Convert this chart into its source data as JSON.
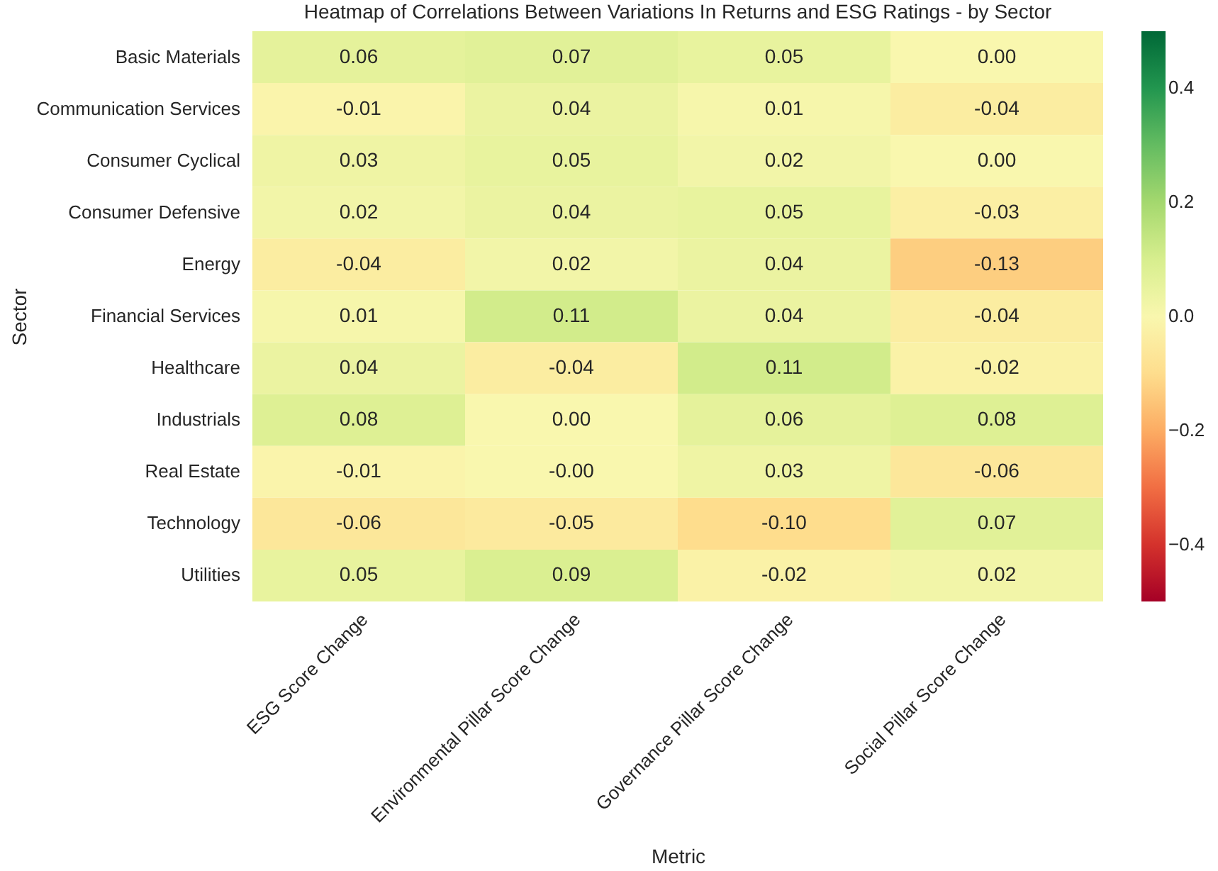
{
  "chart_data": {
    "type": "heatmap",
    "title": "Heatmap of Correlations Between Variations In Returns and ESG Ratings - by Sector",
    "xlabel": "Metric",
    "ylabel": "Sector",
    "categories": [
      "ESG Score Change",
      "Environmental Pillar Score Change",
      "Governance Pillar Score Change",
      "Social Pillar Score Change"
    ],
    "y_categories": [
      "Basic Materials",
      "Communication Services",
      "Consumer Cyclical",
      "Consumer Defensive",
      "Energy",
      "Financial Services",
      "Healthcare",
      "Industrials",
      "Real Estate",
      "Technology",
      "Utilities"
    ],
    "cells": [
      [
        0.06,
        0.07,
        0.05,
        0.0
      ],
      [
        -0.01,
        0.04,
        0.01,
        -0.04
      ],
      [
        0.03,
        0.05,
        0.02,
        0.0
      ],
      [
        0.02,
        0.04,
        0.05,
        -0.03
      ],
      [
        -0.04,
        0.02,
        0.04,
        -0.13
      ],
      [
        0.01,
        0.11,
        0.04,
        -0.04
      ],
      [
        0.04,
        -0.04,
        0.11,
        -0.02
      ],
      [
        0.08,
        0.0,
        0.06,
        0.08
      ],
      [
        -0.01,
        0.0,
        0.03,
        -0.06
      ],
      [
        -0.06,
        -0.05,
        -0.1,
        0.07
      ],
      [
        0.05,
        0.09,
        -0.02,
        0.02
      ]
    ],
    "cell_labels": [
      [
        "0.06",
        "0.07",
        "0.05",
        "0.00"
      ],
      [
        "-0.01",
        "0.04",
        "0.01",
        "-0.04"
      ],
      [
        "0.03",
        "0.05",
        "0.02",
        "0.00"
      ],
      [
        "0.02",
        "0.04",
        "0.05",
        "-0.03"
      ],
      [
        "-0.04",
        "0.02",
        "0.04",
        "-0.13"
      ],
      [
        "0.01",
        "0.11",
        "0.04",
        "-0.04"
      ],
      [
        "0.04",
        "-0.04",
        "0.11",
        "-0.02"
      ],
      [
        "0.08",
        "0.00",
        "0.06",
        "0.08"
      ],
      [
        "-0.01",
        "-0.00",
        "0.03",
        "-0.06"
      ],
      [
        "-0.06",
        "-0.05",
        "-0.10",
        "0.07"
      ],
      [
        "0.05",
        "0.09",
        "-0.02",
        "0.02"
      ]
    ],
    "clim": [
      -0.5,
      0.5
    ],
    "cticks": [
      -0.4,
      -0.2,
      {
        "value": 0,
        "label": "0.0"
      },
      0.2,
      0.4
    ]
  }
}
